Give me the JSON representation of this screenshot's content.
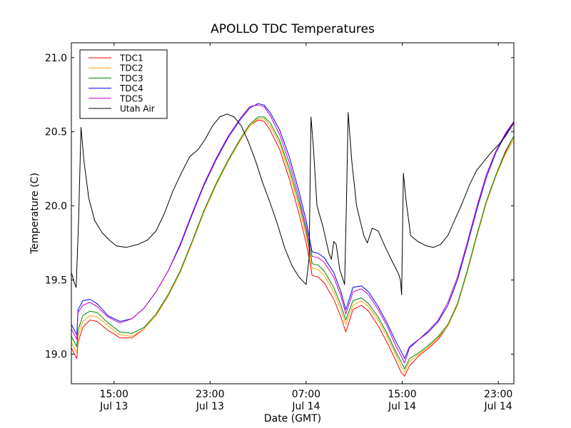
{
  "chart_data": {
    "type": "line",
    "title": "APOLLO TDC Temperatures",
    "xlabel": "Date (GMT)",
    "ylabel": "Temperature (C)",
    "x_units": "hours since Jul 13 00:00 GMT",
    "xlim": [
      11.45,
      48.3
    ],
    "ylim": [
      18.8,
      21.1
    ],
    "grid": false,
    "legend_position": "top-left",
    "xticks": [
      {
        "value": 15,
        "label_time": "15:00",
        "label_date": "Jul 13"
      },
      {
        "value": 23,
        "label_time": "23:00",
        "label_date": "Jul 13"
      },
      {
        "value": 31,
        "label_time": "07:00",
        "label_date": "Jul 14"
      },
      {
        "value": 39,
        "label_time": "15:00",
        "label_date": "Jul 14"
      },
      {
        "value": 47,
        "label_time": "23:00",
        "label_date": "Jul 14"
      }
    ],
    "yticks": [
      {
        "value": 19.0,
        "label": "19.0"
      },
      {
        "value": 19.5,
        "label": "19.5"
      },
      {
        "value": 20.0,
        "label": "20.0"
      },
      {
        "value": 20.5,
        "label": "20.5"
      },
      {
        "value": 21.0,
        "label": "21.0"
      }
    ],
    "series": [
      {
        "name": "TDC1",
        "color": "#ff0000",
        "x": [
          11.45,
          11.9,
          12.0,
          12.4,
          13.0,
          13.6,
          14.5,
          15.5,
          16.5,
          17.5,
          18.5,
          19.5,
          20.5,
          21.5,
          22.5,
          23.5,
          24.5,
          25.5,
          26.3,
          27.0,
          27.5,
          28.0,
          28.8,
          29.6,
          30.4,
          31.0,
          31.4,
          31.5,
          32.0,
          32.5,
          33.3,
          33.9,
          34.3,
          34.9,
          35.6,
          36.2,
          37.0,
          37.8,
          38.5,
          38.9,
          39.2,
          39.6,
          40.4,
          41.2,
          42.0,
          42.8,
          43.6,
          44.4,
          45.2,
          46.0,
          46.8,
          47.6,
          48.3
        ],
        "y": [
          19.04,
          18.97,
          19.08,
          19.18,
          19.23,
          19.22,
          19.16,
          19.11,
          19.11,
          19.17,
          19.26,
          19.39,
          19.55,
          19.75,
          19.96,
          20.14,
          20.3,
          20.44,
          20.54,
          20.58,
          20.57,
          20.51,
          20.38,
          20.18,
          19.95,
          19.75,
          19.58,
          19.53,
          19.52,
          19.48,
          19.37,
          19.25,
          19.15,
          19.3,
          19.33,
          19.29,
          19.19,
          19.07,
          18.95,
          18.88,
          18.85,
          18.92,
          18.99,
          19.04,
          19.1,
          19.19,
          19.33,
          19.55,
          19.79,
          20.02,
          20.2,
          20.36,
          20.47
        ]
      },
      {
        "name": "TDC2",
        "color": "#ffa500",
        "x": [
          11.45,
          11.9,
          12.0,
          12.4,
          13.0,
          13.6,
          14.5,
          15.5,
          16.5,
          17.5,
          18.5,
          19.5,
          20.5,
          21.5,
          22.5,
          23.5,
          24.5,
          25.5,
          26.3,
          27.0,
          27.5,
          28.0,
          28.8,
          29.6,
          30.4,
          31.0,
          31.4,
          31.5,
          32.0,
          32.5,
          33.3,
          33.9,
          34.3,
          34.9,
          35.6,
          36.2,
          37.0,
          37.8,
          38.5,
          38.9,
          39.2,
          39.6,
          40.4,
          41.2,
          42.0,
          42.8,
          43.6,
          44.4,
          45.2,
          46.0,
          46.8,
          47.6,
          48.3
        ],
        "y": [
          19.08,
          19.01,
          19.12,
          19.22,
          19.26,
          19.25,
          19.19,
          19.13,
          19.12,
          19.17,
          19.26,
          19.39,
          19.55,
          19.75,
          19.96,
          20.14,
          20.3,
          20.44,
          20.54,
          20.59,
          20.59,
          20.54,
          20.42,
          20.22,
          20.0,
          19.8,
          19.63,
          19.58,
          19.57,
          19.53,
          19.42,
          19.3,
          19.2,
          19.33,
          19.36,
          19.32,
          19.23,
          19.11,
          18.99,
          18.92,
          18.88,
          18.95,
          19.0,
          19.05,
          19.11,
          19.19,
          19.33,
          19.55,
          19.79,
          20.02,
          20.2,
          20.35,
          20.45
        ]
      },
      {
        "name": "TDC3",
        "color": "#008000",
        "x": [
          11.45,
          11.9,
          12.0,
          12.4,
          13.0,
          13.6,
          14.5,
          15.5,
          16.5,
          17.5,
          18.5,
          19.5,
          20.5,
          21.5,
          22.5,
          23.5,
          24.5,
          25.5,
          26.3,
          27.0,
          27.5,
          28.0,
          28.8,
          29.6,
          30.4,
          31.0,
          31.4,
          31.5,
          32.0,
          32.5,
          33.3,
          33.9,
          34.3,
          34.9,
          35.6,
          36.2,
          37.0,
          37.8,
          38.5,
          38.9,
          39.2,
          39.6,
          40.4,
          41.2,
          42.0,
          42.8,
          43.6,
          44.4,
          45.2,
          46.0,
          46.8,
          47.6,
          48.3
        ],
        "y": [
          19.12,
          19.05,
          19.16,
          19.26,
          19.29,
          19.28,
          19.21,
          19.15,
          19.14,
          19.18,
          19.27,
          19.4,
          19.56,
          19.76,
          19.97,
          20.15,
          20.31,
          20.45,
          20.55,
          20.6,
          20.6,
          20.56,
          20.44,
          20.25,
          20.03,
          19.83,
          19.66,
          19.61,
          19.6,
          19.56,
          19.45,
          19.33,
          19.23,
          19.36,
          19.38,
          19.34,
          19.25,
          19.13,
          19.01,
          18.95,
          18.9,
          18.97,
          19.01,
          19.06,
          19.12,
          19.2,
          19.34,
          19.56,
          19.8,
          20.03,
          20.21,
          20.37,
          20.47
        ]
      },
      {
        "name": "TDC4",
        "color": "#0000ff",
        "x": [
          11.45,
          11.9,
          12.0,
          12.4,
          13.0,
          13.6,
          14.5,
          15.5,
          16.5,
          17.5,
          18.5,
          19.5,
          20.5,
          21.5,
          22.5,
          23.5,
          24.5,
          25.5,
          26.3,
          27.0,
          27.5,
          28.0,
          28.8,
          29.6,
          30.4,
          31.0,
          31.4,
          31.5,
          32.0,
          32.5,
          33.3,
          33.9,
          34.3,
          34.9,
          35.6,
          36.2,
          37.0,
          37.8,
          38.5,
          38.9,
          39.2,
          39.6,
          40.4,
          41.2,
          42.0,
          42.8,
          43.6,
          44.4,
          45.2,
          46.0,
          46.8,
          47.6,
          48.3
        ],
        "y": [
          19.2,
          19.13,
          19.3,
          19.36,
          19.37,
          19.34,
          19.26,
          19.22,
          19.24,
          19.31,
          19.42,
          19.56,
          19.73,
          19.94,
          20.14,
          20.31,
          20.46,
          20.58,
          20.66,
          20.69,
          20.68,
          20.63,
          20.51,
          20.33,
          20.1,
          19.9,
          19.73,
          19.69,
          19.68,
          19.65,
          19.55,
          19.42,
          19.3,
          19.45,
          19.46,
          19.42,
          19.32,
          19.2,
          19.08,
          19.02,
          18.97,
          19.05,
          19.1,
          19.15,
          19.22,
          19.33,
          19.5,
          19.73,
          19.97,
          20.19,
          20.36,
          20.48,
          20.57
        ]
      },
      {
        "name": "TDC5",
        "color": "#bf00bf",
        "x": [
          11.45,
          11.9,
          12.0,
          12.4,
          13.0,
          13.6,
          14.5,
          15.5,
          16.5,
          17.5,
          18.5,
          19.5,
          20.5,
          21.5,
          22.5,
          23.5,
          24.5,
          25.5,
          26.3,
          27.0,
          27.5,
          28.0,
          28.8,
          29.6,
          30.4,
          31.0,
          31.4,
          31.5,
          32.0,
          32.5,
          33.3,
          33.9,
          34.3,
          34.9,
          35.6,
          36.2,
          37.0,
          37.8,
          38.5,
          38.9,
          39.2,
          39.6,
          40.4,
          41.2,
          42.0,
          42.8,
          43.6,
          44.4,
          45.2,
          46.0,
          46.8,
          47.6,
          48.3
        ],
        "y": [
          19.17,
          19.1,
          19.28,
          19.33,
          19.35,
          19.32,
          19.25,
          19.21,
          19.24,
          19.31,
          19.42,
          19.56,
          19.74,
          19.95,
          20.15,
          20.32,
          20.47,
          20.59,
          20.67,
          20.68,
          20.67,
          20.61,
          20.48,
          20.29,
          20.06,
          19.86,
          19.7,
          19.66,
          19.65,
          19.62,
          19.52,
          19.39,
          19.27,
          19.42,
          19.44,
          19.4,
          19.3,
          19.18,
          19.05,
          18.99,
          18.94,
          19.04,
          19.1,
          19.16,
          19.23,
          19.35,
          19.52,
          19.75,
          19.99,
          20.21,
          20.37,
          20.49,
          20.57
        ]
      },
      {
        "name": "Utah Air",
        "color": "#000000",
        "x": [
          11.45,
          11.7,
          11.85,
          12.05,
          12.25,
          12.5,
          12.9,
          13.4,
          14.0,
          14.6,
          15.2,
          16.0,
          17.0,
          17.8,
          18.5,
          19.2,
          19.9,
          20.6,
          21.3,
          22.0,
          22.6,
          23.2,
          23.8,
          24.4,
          25.0,
          25.6,
          26.2,
          26.8,
          27.4,
          28.0,
          28.6,
          29.2,
          29.8,
          30.4,
          31.0,
          31.25,
          31.4,
          31.6,
          31.9,
          32.4,
          32.9,
          33.1,
          33.3,
          33.5,
          33.8,
          34.2,
          34.35,
          34.5,
          34.8,
          35.2,
          35.5,
          35.8,
          36.1,
          36.5,
          37.0,
          37.6,
          38.2,
          38.7,
          38.85,
          38.95,
          39.1,
          39.3,
          39.7,
          40.3,
          41.0,
          41.6,
          42.2,
          42.8,
          43.4,
          44.0,
          44.6,
          45.2,
          45.8,
          46.4,
          47.0,
          47.6,
          48.3
        ],
        "y": [
          19.55,
          19.48,
          19.45,
          19.9,
          20.53,
          20.3,
          20.05,
          19.9,
          19.82,
          19.77,
          19.73,
          19.72,
          19.74,
          19.77,
          19.83,
          19.95,
          20.1,
          20.22,
          20.33,
          20.38,
          20.45,
          20.54,
          20.6,
          20.62,
          20.6,
          20.54,
          20.43,
          20.3,
          20.15,
          20.02,
          19.88,
          19.72,
          19.6,
          19.52,
          19.47,
          19.65,
          20.6,
          20.4,
          20.0,
          19.86,
          19.68,
          19.64,
          19.76,
          19.74,
          19.57,
          19.47,
          20.0,
          20.63,
          20.3,
          20.0,
          19.9,
          19.8,
          19.75,
          19.85,
          19.83,
          19.72,
          19.62,
          19.54,
          19.5,
          19.4,
          20.22,
          20.05,
          19.8,
          19.76,
          19.73,
          19.72,
          19.74,
          19.8,
          19.91,
          20.02,
          20.14,
          20.24,
          20.3,
          20.36,
          20.41,
          20.47,
          20.56
        ]
      }
    ]
  }
}
